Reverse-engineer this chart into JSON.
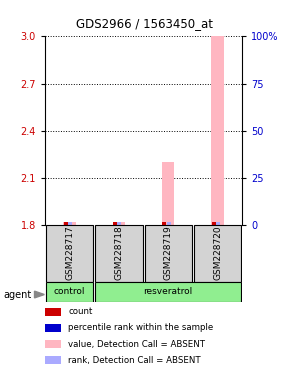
{
  "title": "GDS2966 / 1563450_at",
  "samples": [
    "GSM228717",
    "GSM228718",
    "GSM228719",
    "GSM228720"
  ],
  "bar_values": [
    1.82,
    1.82,
    2.2,
    3.0
  ],
  "bar_color": "#ffb6c1",
  "rank_color": "#aaaaff",
  "count_color": "#cc0000",
  "ylim_left": [
    1.8,
    3.0
  ],
  "ylim_right": [
    0,
    100
  ],
  "yticks_left": [
    1.8,
    2.1,
    2.4,
    2.7,
    3.0
  ],
  "yticks_right": [
    0,
    25,
    50,
    75,
    100
  ],
  "ylabel_left_color": "#cc0000",
  "ylabel_right_color": "#0000cc",
  "control_color": "#90ee90",
  "resveratrol_color": "#90ee90",
  "sample_box_color": "#d3d3d3",
  "legend_items": [
    {
      "label": "count",
      "color": "#cc0000"
    },
    {
      "label": "percentile rank within the sample",
      "color": "#0000cc"
    },
    {
      "label": "value, Detection Call = ABSENT",
      "color": "#ffb6c1"
    },
    {
      "label": "rank, Detection Call = ABSENT",
      "color": "#aaaaff"
    }
  ]
}
